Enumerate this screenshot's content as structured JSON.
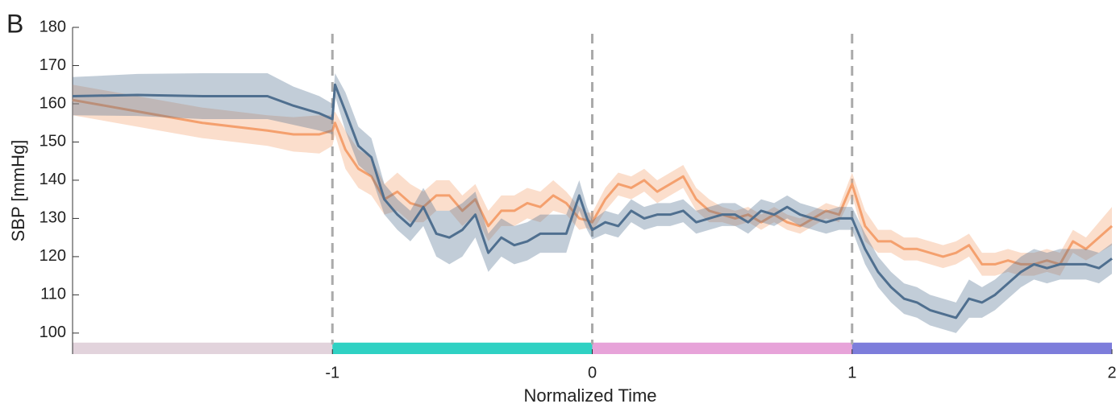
{
  "chart_data": {
    "type": "line",
    "panel_label": "B",
    "xlabel": "Normalized Time",
    "ylabel": "SBP [mmHg]",
    "xlim": [
      -2,
      2
    ],
    "xticks": [
      -1,
      0,
      1,
      2
    ],
    "ylim": [
      94.5,
      180
    ],
    "yticks": [
      100,
      110,
      120,
      130,
      140,
      150,
      160,
      170,
      180
    ],
    "vlines": [
      -1,
      0,
      1
    ],
    "phases": [
      {
        "x": [
          -2,
          -1
        ],
        "y": [
          94.5,
          97.5
        ],
        "color": "#e2d3dc"
      },
      {
        "x": [
          -1,
          0
        ],
        "y": [
          94.5,
          97.5
        ],
        "color": "#2fd1c3"
      },
      {
        "x": [
          0,
          1
        ],
        "y": [
          94.5,
          97.5
        ],
        "color": "#e7a3d9"
      },
      {
        "x": [
          1,
          2
        ],
        "y": [
          94.5,
          97.5
        ],
        "color": "#7d7ddb"
      }
    ],
    "x": [
      -2,
      -1.75,
      -1.5,
      -1.25,
      -1.15,
      -1.05,
      -1,
      -0.99,
      -0.95,
      -0.9,
      -0.85,
      -0.8,
      -0.75,
      -0.7,
      -0.65,
      -0.6,
      -0.55,
      -0.5,
      -0.45,
      -0.4,
      -0.35,
      -0.3,
      -0.25,
      -0.2,
      -0.15,
      -0.1,
      -0.05,
      -0.02,
      0,
      0.05,
      0.1,
      0.15,
      0.2,
      0.25,
      0.3,
      0.35,
      0.4,
      0.45,
      0.5,
      0.55,
      0.6,
      0.65,
      0.7,
      0.75,
      0.8,
      0.85,
      0.9,
      0.95,
      1,
      1.05,
      1.1,
      1.15,
      1.2,
      1.25,
      1.3,
      1.35,
      1.4,
      1.45,
      1.5,
      1.55,
      1.6,
      1.65,
      1.7,
      1.75,
      1.8,
      1.85,
      1.9,
      1.95,
      2
    ],
    "series": [
      {
        "color": "#f4a06e",
        "values": [
          161,
          158,
          155,
          153,
          152,
          152,
          153,
          155,
          148,
          143,
          141,
          135,
          137,
          134,
          133,
          136,
          136,
          132,
          135,
          128,
          132,
          132,
          134,
          133,
          136,
          134,
          130,
          129.5,
          129,
          135,
          139,
          138,
          140,
          137,
          139,
          141,
          135,
          132,
          131,
          130,
          131,
          129,
          131,
          129,
          128,
          130,
          132,
          131,
          139,
          128,
          124,
          124,
          122,
          122,
          121,
          120,
          121,
          123,
          118,
          118,
          119,
          118,
          118,
          119,
          118,
          124,
          122,
          125,
          128
        ],
        "error": [
          4,
          4,
          4,
          4,
          4.5,
          5,
          4,
          3,
          5,
          5,
          5,
          4,
          5,
          5,
          4,
          4,
          4,
          4,
          4,
          4,
          4,
          4,
          4,
          4,
          4,
          3,
          3,
          2,
          2.5,
          3,
          3,
          3,
          3,
          3,
          3,
          3,
          3,
          3,
          2,
          2,
          2,
          2,
          2,
          2,
          2,
          2,
          2,
          2,
          3,
          4,
          3,
          3,
          3,
          3,
          3,
          3,
          3,
          3,
          3,
          3,
          3,
          3,
          3,
          3,
          3,
          3,
          3,
          4,
          5
        ]
      },
      {
        "color": "#4f6f8f",
        "values": [
          162,
          162.3,
          162,
          162,
          159.5,
          157.5,
          156,
          165,
          158,
          149,
          146,
          135,
          131,
          128,
          133,
          126,
          125,
          127,
          131,
          121,
          125,
          123,
          124,
          126,
          126,
          126,
          136,
          130,
          127,
          129,
          128,
          132,
          130,
          131,
          131,
          132,
          129,
          130,
          131,
          131,
          129,
          132,
          131,
          133,
          131,
          130,
          129,
          130,
          130,
          122,
          116,
          112,
          109,
          108,
          106,
          105,
          104,
          109,
          108,
          110,
          113,
          116,
          118,
          117,
          118,
          118,
          118,
          117,
          119.5
        ],
        "error": [
          5,
          5.5,
          6,
          6,
          5,
          4.5,
          4,
          3,
          5,
          5,
          5,
          4,
          4,
          4,
          5,
          6,
          7,
          7,
          6,
          5,
          5,
          5,
          5,
          5,
          5,
          5,
          4,
          3,
          2.5,
          3,
          3,
          3,
          3,
          3,
          3,
          3,
          3,
          3,
          3,
          3,
          3,
          3,
          3,
          3,
          3,
          3,
          3,
          3,
          3,
          4,
          4,
          4,
          4,
          4,
          4,
          4,
          4,
          5,
          4,
          4,
          4,
          4,
          4,
          4,
          4,
          4,
          4,
          4,
          4
        ]
      }
    ]
  }
}
